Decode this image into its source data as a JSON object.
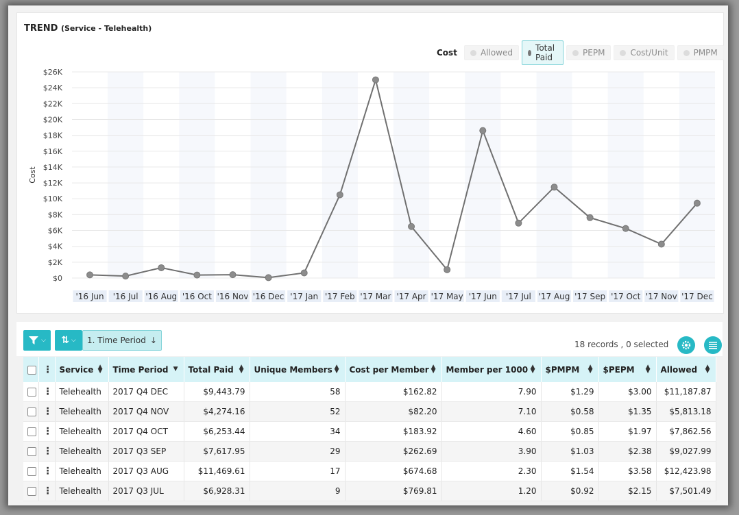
{
  "header": {
    "title": "TREND",
    "subtitle": "(Service - Telehealth)"
  },
  "metrics": {
    "label": "Cost",
    "options": [
      {
        "label": "Allowed",
        "active": false
      },
      {
        "label": "Total Paid",
        "active": true
      },
      {
        "label": "PEPM",
        "active": false
      },
      {
        "label": "Cost/Unit",
        "active": false
      },
      {
        "label": "PMPM",
        "active": false
      }
    ]
  },
  "chart_data": {
    "type": "line",
    "title": "",
    "xlabel": "",
    "ylabel": "Cost",
    "categories": [
      "'16 Jun",
      "'16 Jul",
      "'16 Aug",
      "'16 Oct",
      "'16 Nov",
      "'16 Dec",
      "'17 Jan",
      "'17 Feb",
      "'17 Mar",
      "'17 Apr",
      "'17 May",
      "'17 Jun",
      "'17 Jul",
      "'17 Aug",
      "'17 Sep",
      "'17 Oct",
      "'17 Nov",
      "'17 Dec"
    ],
    "series": [
      {
        "values": [
          400,
          250,
          1300,
          380,
          420,
          50,
          650,
          10500,
          25000,
          6500,
          1050,
          18600,
          6928.31,
          11469.61,
          7617.95,
          6253.44,
          4274.16,
          9443.79
        ]
      }
    ],
    "ylim": [
      0,
      26000
    ],
    "yticks": [
      "$0",
      "$2K",
      "$4K",
      "$6K",
      "$8K",
      "$10K",
      "$12K",
      "$14K",
      "$16K",
      "$18K",
      "$20K",
      "$22K",
      "$24K",
      "$26K"
    ],
    "grid": true,
    "line_color": "#707070",
    "point_color": "#8c8c8c"
  },
  "toolbar": {
    "time_period_chip": "1. Time Period",
    "records": "18 records , 0 selected"
  },
  "table": {
    "columns": [
      "Service",
      "Time Period",
      "Total Paid",
      "Unique Members",
      "Cost per Member",
      "Member per 1000",
      "$PMPM",
      "$PEPM",
      "Allowed"
    ],
    "rows": [
      [
        "Telehealth",
        "2017 Q4 DEC",
        "$9,443.79",
        "58",
        "$162.82",
        "7.90",
        "$1.29",
        "$3.00",
        "$11,187.87"
      ],
      [
        "Telehealth",
        "2017 Q4 NOV",
        "$4,274.16",
        "52",
        "$82.20",
        "7.10",
        "$0.58",
        "$1.35",
        "$5,813.18"
      ],
      [
        "Telehealth",
        "2017 Q4 OCT",
        "$6,253.44",
        "34",
        "$183.92",
        "4.60",
        "$0.85",
        "$1.97",
        "$7,862.56"
      ],
      [
        "Telehealth",
        "2017 Q3 SEP",
        "$7,617.95",
        "29",
        "$262.69",
        "3.90",
        "$1.03",
        "$2.38",
        "$9,027.99"
      ],
      [
        "Telehealth",
        "2017 Q3 AUG",
        "$11,469.61",
        "17",
        "$674.68",
        "2.30",
        "$1.54",
        "$3.58",
        "$12,423.98"
      ],
      [
        "Telehealth",
        "2017 Q3 JUL",
        "$6,928.31",
        "9",
        "$769.81",
        "1.20",
        "$0.92",
        "$2.15",
        "$7,501.49"
      ]
    ]
  },
  "colors": {
    "accent": "#27b9c5",
    "header_bg": "#d6f3f7"
  },
  "icons": [
    "filter-icon",
    "sort-icon",
    "gear-icon",
    "list-icon",
    "kebab-icon",
    "checkbox-icon"
  ]
}
